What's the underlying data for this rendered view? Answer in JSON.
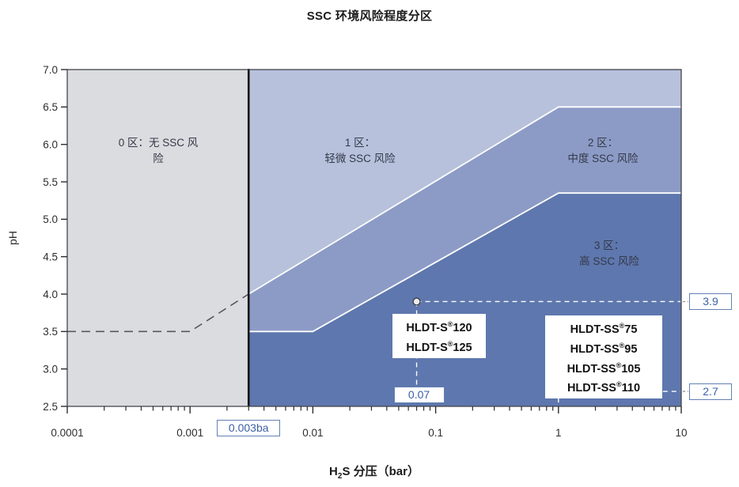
{
  "title": "SSC 环境风险程度分区",
  "y_axis_label": "pH",
  "x_axis_label": {
    "prefix": "H",
    "sub": "2",
    "suffix": "S 分压（bar）"
  },
  "chart_data": {
    "type": "area",
    "title": "SSC 环境风险程度分区",
    "x": {
      "scale": "log",
      "unit": "bar",
      "range": [
        0.0001,
        10
      ],
      "ticks": [
        0.0001,
        0.001,
        0.01,
        0.1,
        1,
        10
      ],
      "tick_labels": [
        "0.0001",
        "0.001",
        "0.01",
        "0.1",
        "1",
        "10"
      ]
    },
    "y": {
      "range": [
        2.5,
        7.0
      ],
      "tick_step": 0.5,
      "tick_labels": [
        "7.0",
        "6.5",
        "6.0",
        "5.5",
        "5.0",
        "4.5",
        "4.0",
        "3.5",
        "3.0",
        "2.5"
      ]
    },
    "h2s_threshold": 0.003,
    "threshold_label": "0.003ba",
    "zones": [
      {
        "id": "0",
        "label_lines": [
          "0 区：无 SSC 风",
          "险"
        ],
        "color": "#dbdce0"
      },
      {
        "id": "1",
        "label_lines": [
          "1 区：",
          "轻微 SSC 风险"
        ],
        "color": "#b7c1dc"
      },
      {
        "id": "2",
        "label_lines": [
          "2 区：",
          "中度 SSC 风险"
        ],
        "color": "#8c9bc6"
      },
      {
        "id": "3",
        "label_lines": [
          "3 区：",
          "高 SSC 风险"
        ],
        "color": "#5e77ae"
      }
    ],
    "boundary_upper": [
      [
        0.003,
        4.0
      ],
      [
        1,
        6.5
      ],
      [
        10,
        6.5
      ]
    ],
    "boundary_lower": [
      [
        0.003,
        3.5
      ],
      [
        0.01,
        3.5
      ],
      [
        1,
        5.35
      ],
      [
        10,
        5.35
      ]
    ],
    "zone0_dashed_line": [
      [
        0.0001,
        3.5
      ],
      [
        0.001,
        3.5
      ],
      [
        0.003,
        4.0
      ]
    ],
    "points": [
      {
        "h2s_bar": 0.07,
        "ph": 3.9,
        "x_label": "0.07",
        "y_label": "3.9"
      },
      {
        "h2s_bar": 1,
        "ph": 2.7,
        "y_label": "2.7"
      }
    ]
  },
  "product_labels": [
    {
      "lines": [
        {
          "name": "HLDT-S",
          "reg": "®",
          "grade": "120"
        },
        {
          "name": "HLDT-S",
          "reg": "®",
          "grade": "125"
        }
      ]
    },
    {
      "lines": [
        {
          "name": "HLDT-SS",
          "reg": "®",
          "grade": "75"
        },
        {
          "name": "HLDT-SS",
          "reg": "®",
          "grade": "95"
        },
        {
          "name": "HLDT-SS",
          "reg": "®",
          "grade": "105"
        },
        {
          "name": "HLDT-SS",
          "reg": "®",
          "grade": "110"
        }
      ]
    }
  ],
  "colors": {
    "zone0": "#dbdce0",
    "zone1": "#b7c1dc",
    "zone2": "#8c9bc6",
    "zone3": "#5e77ae",
    "boundary_white": "#ffffff",
    "annotation_blue": "#3c61a4",
    "annotation_border": "#6380b4",
    "axis_dark": "#2d2d32",
    "dashed_gray": "#58585c",
    "marker_fill": "#ececee"
  }
}
